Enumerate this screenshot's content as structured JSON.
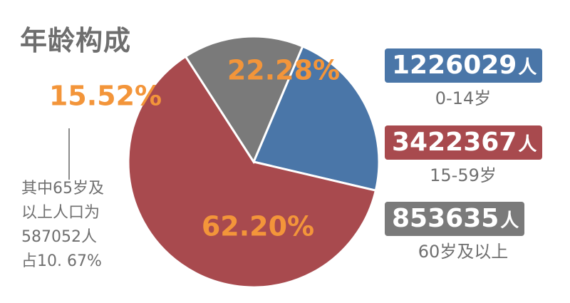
{
  "title": "年龄构成",
  "chart_data": {
    "type": "pie",
    "slices": [
      {
        "label": "0-14岁",
        "value": 22.28,
        "display": "22.28%",
        "count": "1226029",
        "color": "#4a76a8"
      },
      {
        "label": "15-59岁",
        "value": 62.2,
        "display": "62.20%",
        "count": "3422367",
        "color": "#a84a4e"
      },
      {
        "label": "60岁及以上",
        "value": 15.52,
        "display": "15.52%",
        "count": "853635",
        "color": "#7a7a7a"
      }
    ],
    "label_color": "#f3953a"
  },
  "legend": [
    {
      "count": "1226029",
      "unit": "人",
      "caption": "0-14岁",
      "color": "#4a76a8"
    },
    {
      "count": "3422367",
      "unit": "人",
      "caption": "15-59岁",
      "color": "#a84a4e"
    },
    {
      "count": "853635",
      "unit": "人",
      "caption": "60岁及以上",
      "color": "#7a7a7a"
    }
  ],
  "side_note": {
    "lines": [
      "其中65岁及",
      "以上人口为",
      "587052人",
      "占10. 67%"
    ]
  }
}
